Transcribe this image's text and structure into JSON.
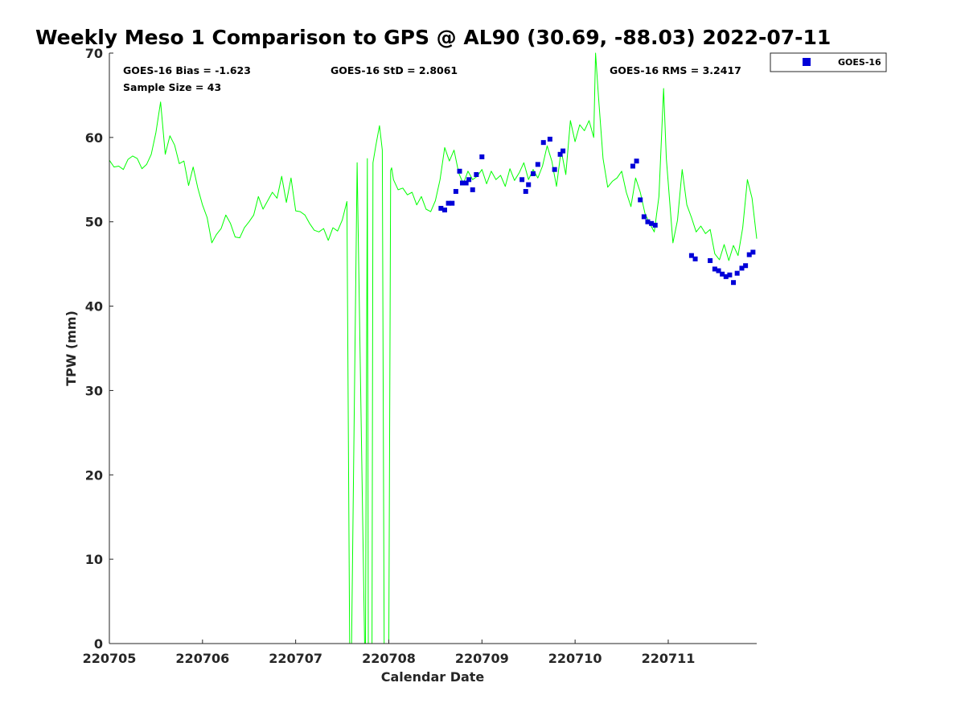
{
  "chart_data": {
    "type": "line",
    "title": "Weekly Meso 1 Comparison to GPS @ AL90 (30.69, -88.03) 2022-07-11",
    "xlabel": "Calendar Date",
    "ylabel": "TPW (mm)",
    "xlim": [
      220705,
      220711.95
    ],
    "ylim": [
      0,
      70
    ],
    "x_ticks": [
      220705,
      220706,
      220707,
      220708,
      220709,
      220710,
      220711
    ],
    "x_tick_labels": [
      "220705",
      "220706",
      "220707",
      "220708",
      "220709",
      "220710",
      "220711"
    ],
    "y_ticks": [
      0,
      10,
      20,
      30,
      40,
      50,
      60,
      70
    ],
    "y_tick_labels": [
      "0",
      "10",
      "20",
      "30",
      "40",
      "50",
      "60",
      "70"
    ],
    "grid": false,
    "legend_position": "top-right-outside",
    "stats": {
      "bias": "GOES-16 Bias = -1.623",
      "std": "GOES-16 StD = 2.8061",
      "rms": "GOES-16 RMS = 3.2417",
      "sample": "Sample Size = 43"
    },
    "series": [
      {
        "kind": "line",
        "color": "#00ff00",
        "x": [
          220705.0,
          220705.05,
          220705.1,
          220705.15,
          220705.2,
          220705.25,
          220705.3,
          220705.35,
          220705.4,
          220705.45,
          220705.5,
          220705.55,
          220705.6,
          220705.65,
          220705.7,
          220705.75,
          220705.8,
          220705.85,
          220705.9,
          220705.95,
          220706.0,
          220706.05,
          220706.1,
          220706.15,
          220706.2,
          220706.25,
          220706.3,
          220706.35,
          220706.4,
          220706.45,
          220706.5,
          220706.55,
          220706.6,
          220706.65,
          220706.7,
          220706.75,
          220706.8,
          220706.85,
          220706.9,
          220706.95,
          220707.0,
          220707.05,
          220707.1,
          220707.15,
          220707.2,
          220707.25,
          220707.3,
          220707.35,
          220707.4,
          220707.45,
          220707.5,
          220707.55,
          220707.58,
          220707.59,
          220707.6,
          220707.66,
          220707.74,
          220707.75,
          220707.77,
          220707.78,
          220707.82,
          220707.83,
          220707.86,
          220707.9,
          220707.93,
          220707.95,
          220707.97,
          220707.98,
          220708.0,
          220708.02,
          220708.03,
          220708.05,
          220708.1,
          220708.15,
          220708.2,
          220708.25,
          220708.3,
          220708.35,
          220708.4,
          220708.45,
          220708.5,
          220708.55,
          220708.6,
          220708.65,
          220708.7,
          220708.75,
          220708.8,
          220708.85,
          220708.9,
          220708.95,
          220709.0,
          220709.05,
          220709.1,
          220709.15,
          220709.2,
          220709.25,
          220709.3,
          220709.35,
          220709.4,
          220709.45,
          220709.5,
          220709.55,
          220709.6,
          220709.65,
          220709.7,
          220709.75,
          220709.8,
          220709.85,
          220709.9,
          220709.95,
          220710.0,
          220710.05,
          220710.1,
          220710.15,
          220710.2,
          220710.22,
          220710.25,
          220710.3,
          220710.35,
          220710.4,
          220710.45,
          220710.5,
          220710.55,
          220710.6,
          220710.65,
          220710.7,
          220710.75,
          220710.8,
          220710.85,
          220710.9,
          220710.95,
          220710.98,
          220711.05,
          220711.1,
          220711.15,
          220711.2,
          220711.25,
          220711.3,
          220711.35,
          220711.4,
          220711.45,
          220711.5,
          220711.55,
          220711.6,
          220711.65,
          220711.7,
          220711.75,
          220711.8,
          220711.85,
          220711.9,
          220711.95
        ],
        "y": [
          57.3,
          56.5,
          56.6,
          56.2,
          57.4,
          57.8,
          57.5,
          56.3,
          56.8,
          58.0,
          60.6,
          64.2,
          58.0,
          60.2,
          59.1,
          56.9,
          57.2,
          54.3,
          56.5,
          54.0,
          52.0,
          50.5,
          47.5,
          48.5,
          49.2,
          50.8,
          49.8,
          48.2,
          48.1,
          49.3,
          50.0,
          50.8,
          53.0,
          51.5,
          52.5,
          53.5,
          52.8,
          55.4,
          52.3,
          55.2,
          51.3,
          51.2,
          50.8,
          49.8,
          49.0,
          48.8,
          49.2,
          47.8,
          49.3,
          48.9,
          50.2,
          52.4,
          0.0,
          0.0,
          0.0,
          57.0,
          0.0,
          0.0,
          57.5,
          0.0,
          0.0,
          57.0,
          59.0,
          61.4,
          58.5,
          0.0,
          0.0,
          0.0,
          0.0,
          56.1,
          56.4,
          55.0,
          53.8,
          54.0,
          53.2,
          53.5,
          52.0,
          53.0,
          51.5,
          51.2,
          52.5,
          55.0,
          58.8,
          57.2,
          58.5,
          55.8,
          54.5,
          56.0,
          55.0,
          55.4,
          56.2,
          54.5,
          56.0,
          55.0,
          55.5,
          54.2,
          56.3,
          54.9,
          55.8,
          57.0,
          55.0,
          56.2,
          55.2,
          56.6,
          59.0,
          57.2,
          54.2,
          58.5,
          55.6,
          62.0,
          59.5,
          61.5,
          60.8,
          62.0,
          60.0,
          70.0,
          65.0,
          57.5,
          54.1,
          54.8,
          55.2,
          56.0,
          53.5,
          51.8,
          55.2,
          53.5,
          51.0,
          49.8,
          48.8,
          53.0,
          65.8,
          57.5,
          47.5,
          50.2,
          56.2,
          52.0,
          50.5,
          48.8,
          49.5,
          48.6,
          49.1,
          46.2,
          45.5,
          47.3,
          45.4,
          47.2,
          46.0,
          49.3,
          55.0,
          52.8,
          48.0
        ]
      },
      {
        "kind": "scatter",
        "name": "GOES-16",
        "color": "#0000d8",
        "x": [
          220708.56,
          220708.6,
          220708.64,
          220708.68,
          220708.72,
          220708.76,
          220708.79,
          220708.83,
          220708.86,
          220708.9,
          220708.94,
          220709.0,
          220709.43,
          220709.47,
          220709.5,
          220709.55,
          220709.6,
          220709.66,
          220709.73,
          220709.78,
          220709.84,
          220709.87,
          220710.62,
          220710.66,
          220710.7,
          220710.74,
          220710.78,
          220710.82,
          220710.86,
          220711.25,
          220711.29,
          220711.45,
          220711.5,
          220711.54,
          220711.58,
          220711.62,
          220711.66,
          220711.7,
          220711.74,
          220711.79,
          220711.83,
          220711.87,
          220711.91
        ],
        "y": [
          51.6,
          51.4,
          52.2,
          52.2,
          53.6,
          56.0,
          54.6,
          54.6,
          55.0,
          53.8,
          55.6,
          57.7,
          55.0,
          53.6,
          54.4,
          55.7,
          56.8,
          59.4,
          59.8,
          56.2,
          58.0,
          58.4,
          56.6,
          57.2,
          52.6,
          50.6,
          50.0,
          49.8,
          49.6,
          46.0,
          45.6,
          45.4,
          44.4,
          44.2,
          43.8,
          43.5,
          43.7,
          42.8,
          43.9,
          44.5,
          44.8,
          46.1,
          46.4
        ]
      }
    ]
  }
}
